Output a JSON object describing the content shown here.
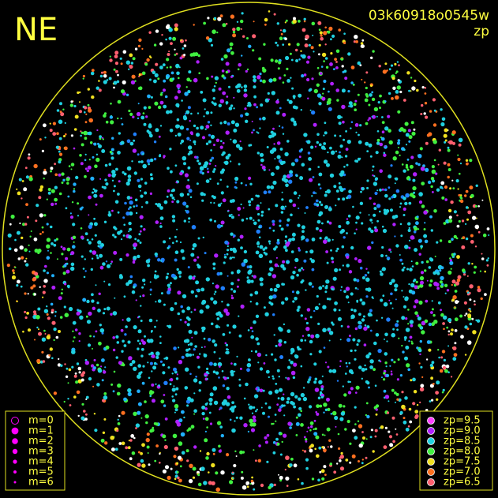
{
  "header": {
    "direction": "NE",
    "frame_id": "03k60918o0545w",
    "quantity": "zp"
  },
  "magnitude_legend": {
    "items": [
      "m=0",
      "m=1",
      "m=2",
      "m=3",
      "m=4",
      "m=5",
      "m=6"
    ],
    "color": "#ff00ff"
  },
  "zp_legend": {
    "items": [
      {
        "label": "zp=9.5",
        "color": "#ff40ff"
      },
      {
        "label": "zp=9.0",
        "color": "#b020ff"
      },
      {
        "label": "zp=8.5",
        "color": "#20d0e0"
      },
      {
        "label": "zp=8.0",
        "color": "#40f040"
      },
      {
        "label": "zp=7.5",
        "color": "#f0e020"
      },
      {
        "label": "zp=7.0",
        "color": "#ff7020"
      },
      {
        "label": "zp=6.5",
        "color": "#ff6070"
      }
    ]
  }
}
